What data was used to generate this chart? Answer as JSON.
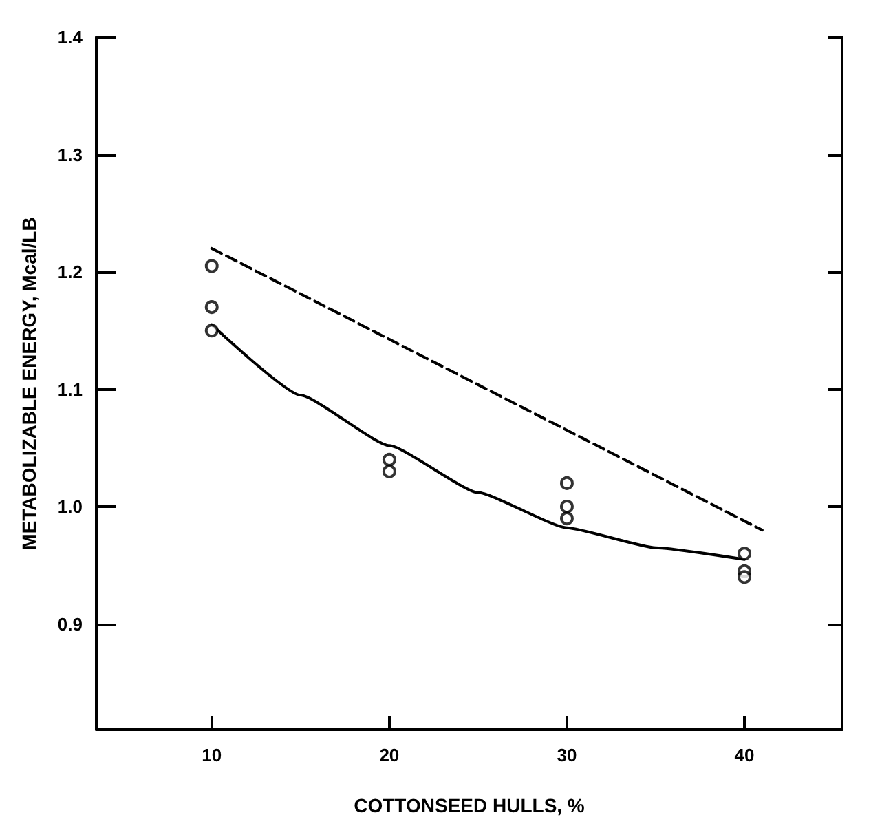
{
  "chart_data": {
    "type": "scatter",
    "xlabel": "COTTONSEED HULLS, %",
    "ylabel": "METABOLIZABLE ENERGY, Mcal/LB",
    "xlim": [
      3.5,
      45.5
    ],
    "xticks": [
      10,
      20,
      30,
      40
    ],
    "ylim": [
      0.81,
      1.4
    ],
    "yticks": [
      0.9,
      {
        "value": 1.0,
        "label": "1.0"
      },
      1.1,
      1.2,
      1.3,
      1.4
    ],
    "grid": false,
    "series": [
      {
        "marker": "circle",
        "color": "#000000",
        "x": [
          10,
          10,
          10,
          20,
          20,
          30,
          30,
          30,
          40,
          40,
          40
        ],
        "values": [
          1.205,
          1.17,
          1.15,
          1.04,
          1.03,
          1.02,
          1.0,
          0.99,
          0.96,
          0.945,
          0.94
        ]
      },
      {
        "type": "line",
        "marker": "none",
        "line_style": "solid",
        "color": "#000000",
        "x": [
          10,
          15,
          20,
          25,
          30,
          35,
          40
        ],
        "values": [
          1.155,
          1.095,
          1.052,
          1.012,
          0.982,
          0.965,
          0.955
        ]
      },
      {
        "type": "line",
        "marker": "none",
        "line_style": "dashed",
        "color": "#000000",
        "x": [
          10,
          41
        ],
        "values": [
          1.22,
          0.98
        ]
      }
    ]
  }
}
